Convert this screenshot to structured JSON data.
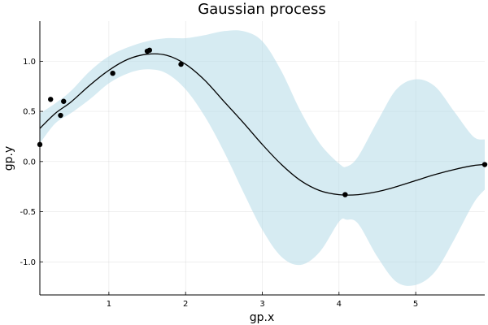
{
  "chart_data": {
    "type": "line",
    "title": "Gaussian process",
    "xlabel": "gp.x",
    "ylabel": "gp.y",
    "xlim": [
      0.1,
      5.9
    ],
    "ylim": [
      -1.33,
      1.4
    ],
    "xticks": [
      1,
      2,
      3,
      4,
      5
    ],
    "xtick_labels": [
      "1",
      "2",
      "3",
      "4",
      "5"
    ],
    "yticks": [
      -1.0,
      -0.5,
      0.0,
      0.5,
      1.0
    ],
    "ytick_labels": [
      "-1.0",
      "-0.5",
      "0.0",
      "0.5",
      "1.0"
    ],
    "grid": true,
    "legend": "none",
    "colors": {
      "mean": "#000000",
      "band": "#add8e6",
      "points": "#000000"
    },
    "series": [
      {
        "kind": "band",
        "x": [
          0.1,
          0.3,
          0.5,
          0.75,
          1.0,
          1.25,
          1.5,
          1.75,
          2.0,
          2.25,
          2.5,
          2.75,
          3.0,
          3.25,
          3.5,
          3.75,
          4.0,
          4.1,
          4.25,
          4.5,
          4.75,
          5.0,
          5.25,
          5.5,
          5.75,
          5.9
        ],
        "lower": [
          0.18,
          0.38,
          0.48,
          0.62,
          0.78,
          0.88,
          0.92,
          0.88,
          0.72,
          0.45,
          0.1,
          -0.3,
          -0.68,
          -0.95,
          -1.03,
          -0.9,
          -0.6,
          -0.58,
          -0.62,
          -0.95,
          -1.2,
          -1.23,
          -1.1,
          -0.78,
          -0.42,
          -0.28
        ],
        "upper": [
          0.48,
          0.58,
          0.7,
          0.9,
          1.05,
          1.14,
          1.2,
          1.23,
          1.23,
          1.26,
          1.3,
          1.3,
          1.2,
          0.9,
          0.5,
          0.18,
          -0.02,
          -0.05,
          0.05,
          0.4,
          0.72,
          0.82,
          0.75,
          0.5,
          0.25,
          0.22
        ]
      },
      {
        "kind": "line",
        "x": [
          0.1,
          0.3,
          0.5,
          0.75,
          1.0,
          1.25,
          1.5,
          1.75,
          2.0,
          2.25,
          2.5,
          2.75,
          3.0,
          3.25,
          3.5,
          3.75,
          4.0,
          4.25,
          4.5,
          4.75,
          5.0,
          5.25,
          5.5,
          5.75,
          5.9
        ],
        "y": [
          0.33,
          0.48,
          0.59,
          0.76,
          0.91,
          1.02,
          1.07,
          1.06,
          0.97,
          0.81,
          0.6,
          0.39,
          0.17,
          -0.03,
          -0.19,
          -0.29,
          -0.33,
          -0.33,
          -0.3,
          -0.25,
          -0.19,
          -0.13,
          -0.08,
          -0.04,
          -0.03
        ]
      },
      {
        "kind": "points",
        "x": [
          0.1,
          0.24,
          0.37,
          0.41,
          1.05,
          1.5,
          1.53,
          1.94,
          4.08,
          5.9
        ],
        "y": [
          0.17,
          0.62,
          0.46,
          0.6,
          0.88,
          1.1,
          1.11,
          0.97,
          -0.33,
          -0.03
        ]
      }
    ]
  }
}
